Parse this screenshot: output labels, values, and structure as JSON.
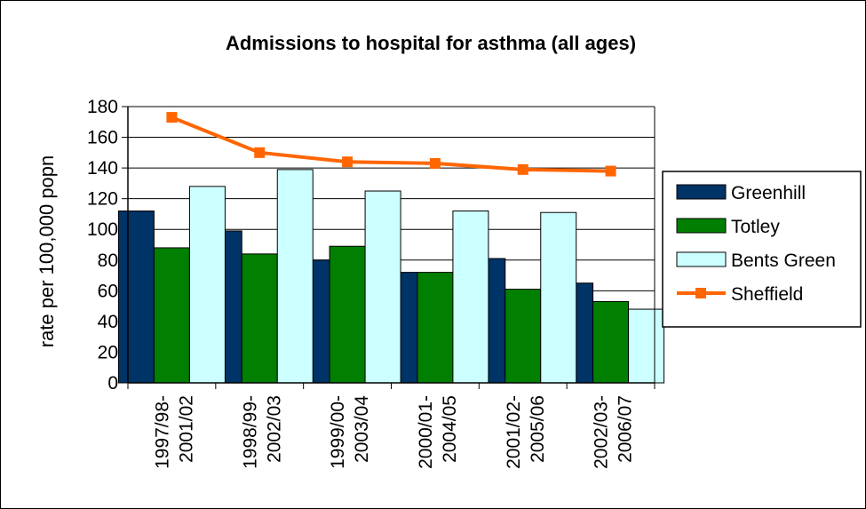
{
  "chart_data": {
    "type": "bar",
    "title": "Admissions to hospital for asthma (all ages)",
    "xlabel": "",
    "ylabel": "rate per 100,000 popn",
    "ylim": [
      0,
      180
    ],
    "yticks": [
      0,
      20,
      40,
      60,
      80,
      100,
      120,
      140,
      160,
      180
    ],
    "grid": true,
    "legend_position": "right",
    "categories": [
      [
        "1997/98-",
        "2001/02"
      ],
      [
        "1998/99-",
        "2002/03"
      ],
      [
        "1999/00-",
        "2003/04"
      ],
      [
        "2000/01-",
        "2004/05"
      ],
      [
        "2001/02-",
        "2005/06"
      ],
      [
        "2002/03-",
        "2006/07"
      ]
    ],
    "series": [
      {
        "name": "Greenhill",
        "type": "bar",
        "color": "#003366",
        "values": [
          112,
          99,
          80,
          72,
          81,
          65
        ]
      },
      {
        "name": "Totley",
        "type": "bar",
        "color": "#007F00",
        "values": [
          88,
          84,
          89,
          72,
          61,
          53
        ]
      },
      {
        "name": "Bents Green",
        "type": "bar",
        "color": "#CCFFFF",
        "values": [
          128,
          139,
          125,
          112,
          111,
          48
        ]
      },
      {
        "name": "Sheffield",
        "type": "line",
        "color": "#FF6600",
        "values": [
          173,
          150,
          144,
          143,
          139,
          138
        ]
      }
    ]
  }
}
